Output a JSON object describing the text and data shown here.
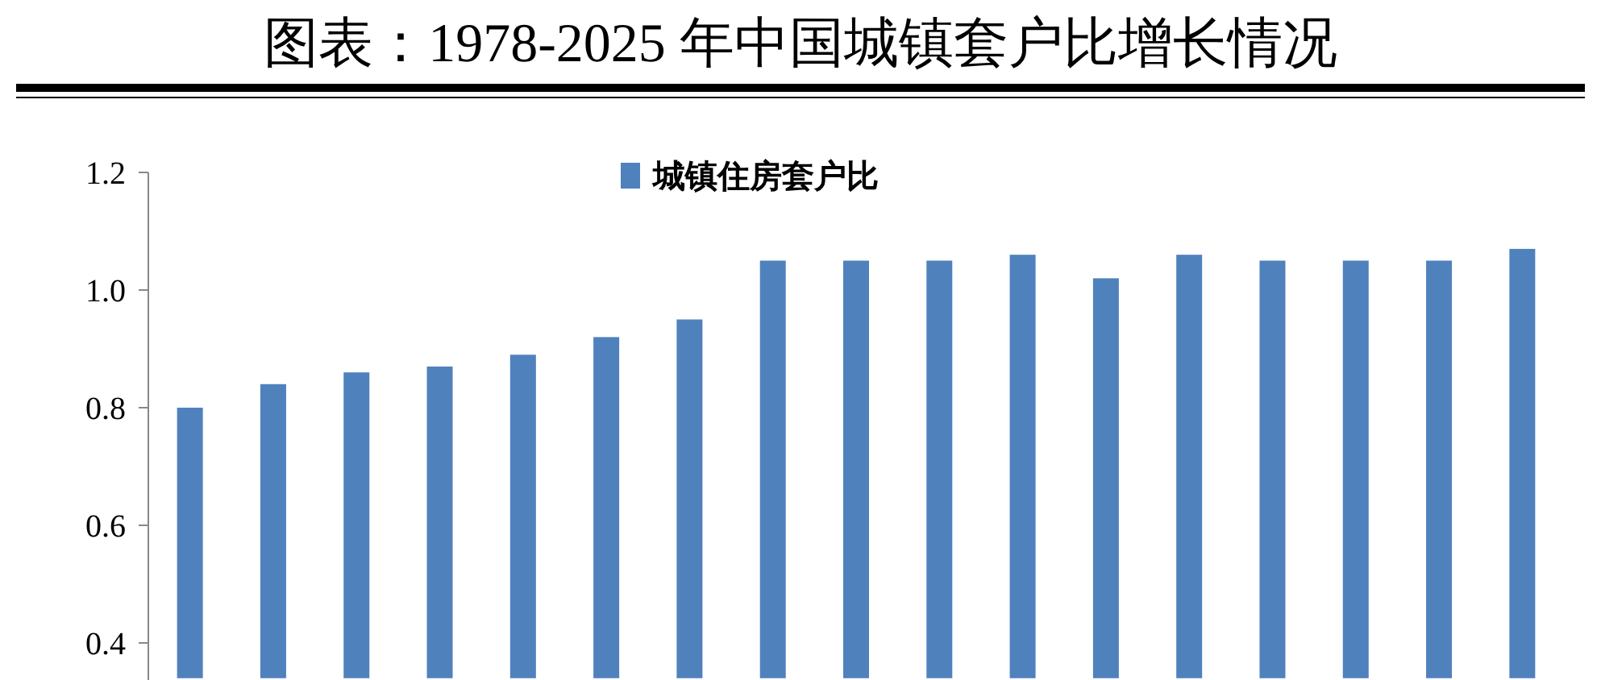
{
  "chart_data": {
    "type": "bar",
    "title": "图表：1978-2025 年中国城镇套户比增长情况",
    "categories": [
      null,
      null,
      null,
      null,
      null,
      null,
      null,
      null,
      null,
      null,
      null,
      null,
      null,
      null,
      null,
      null,
      null
    ],
    "series": [
      {
        "name": "城镇住房套户比",
        "color": "#4f81bd",
        "values": [
          0.8,
          0.84,
          0.86,
          0.87,
          0.89,
          0.92,
          0.95,
          1.05,
          1.05,
          1.05,
          1.06,
          1.02,
          1.06,
          1.05,
          1.05,
          1.05,
          1.07
        ]
      }
    ],
    "ylim": [
      0.34,
      1.2
    ],
    "yticks": [
      {
        "value": 0.4,
        "label": "0.4"
      },
      {
        "value": 0.6,
        "label": "0.6"
      },
      {
        "value": 0.8,
        "label": "0.8"
      },
      {
        "value": 1.0,
        "label": "1.0"
      },
      {
        "value": 1.2,
        "label": "1.2"
      }
    ],
    "legend": "top",
    "grid": false,
    "tick_labels": "y"
  }
}
